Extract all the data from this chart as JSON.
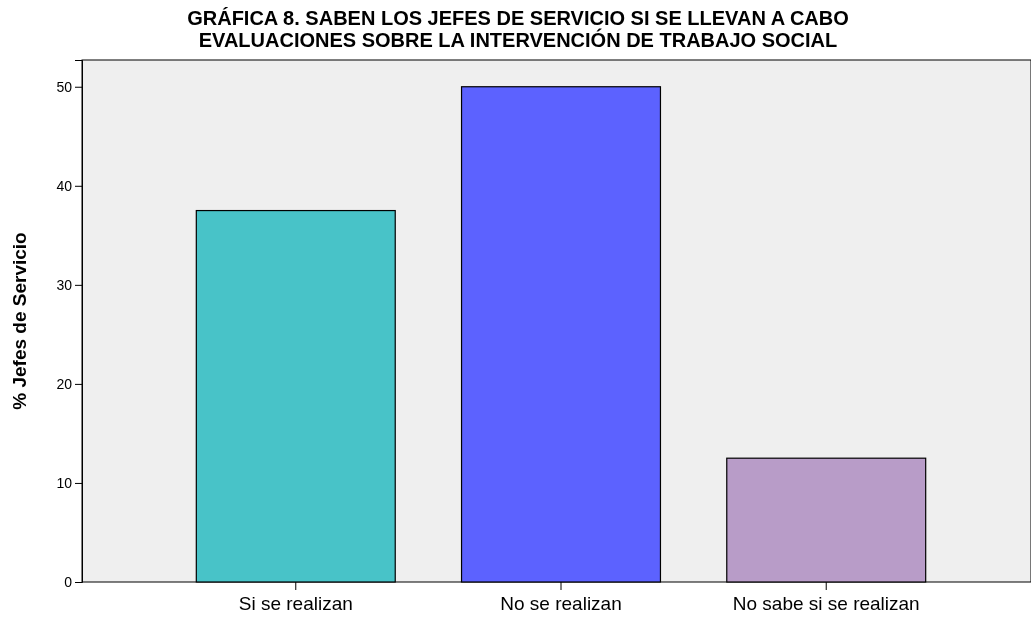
{
  "chart_data": {
    "type": "bar",
    "title": "GRÁFICA 8. SABEN LOS JEFES DE SERVICIO SI SE LLEVAN A CABO\nEVALUACIONES SOBRE LA INTERVENCIÓN DE TRABAJO SOCIAL",
    "ylabel": "% Jefes de Servicio",
    "categories": [
      "Si se realizan",
      "No se realizan",
      "No sabe si se realizan"
    ],
    "values": [
      37.5,
      50,
      12.5
    ],
    "colors": [
      "#48c3c8",
      "#5c62ff",
      "#b89cc8"
    ],
    "ylim": [
      0,
      52.7
    ],
    "yticks": [
      0,
      10,
      20,
      30,
      40,
      50
    ]
  }
}
